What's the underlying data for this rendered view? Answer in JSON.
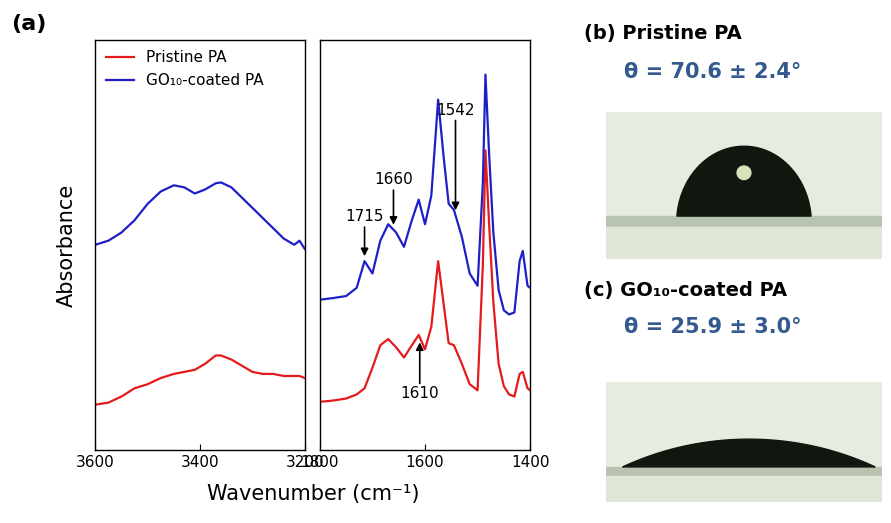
{
  "chart_data": [
    {
      "type": "line",
      "x": [
        3600,
        3575,
        3550,
        3525,
        3500,
        3475,
        3450,
        3430,
        3410,
        3390,
        3370,
        3360,
        3340,
        3320,
        3300,
        3280,
        3260,
        3240,
        3220,
        3210,
        3200
      ],
      "series": [
        {
          "name": "Pristine PA",
          "color": "#e41a1c",
          "values": [
            1.1,
            1.15,
            1.3,
            1.5,
            1.6,
            1.75,
            1.85,
            1.9,
            1.95,
            2.1,
            2.3,
            2.3,
            2.2,
            2.05,
            1.9,
            1.85,
            1.85,
            1.8,
            1.8,
            1.8,
            1.75
          ]
        },
        {
          "name": "GO₁₀-coated PA",
          "color": "#1f1fc8",
          "values": [
            5.0,
            5.1,
            5.3,
            5.6,
            6.0,
            6.3,
            6.45,
            6.4,
            6.25,
            6.35,
            6.5,
            6.52,
            6.4,
            6.15,
            5.9,
            5.65,
            5.4,
            5.15,
            5.0,
            5.1,
            4.9
          ]
        }
      ],
      "xlim": [
        3600,
        3200
      ],
      "xticks": [
        3600,
        3400,
        3200
      ],
      "ylim": [
        0,
        10
      ],
      "yticks": [],
      "tick_labels": "x",
      "legend": "upper left"
    },
    {
      "type": "line",
      "x": [
        1800,
        1775,
        1750,
        1730,
        1715,
        1700,
        1685,
        1670,
        1655,
        1640,
        1625,
        1612,
        1600,
        1588,
        1575,
        1565,
        1555,
        1545,
        1530,
        1515,
        1500,
        1490,
        1485,
        1478,
        1470,
        1460,
        1450,
        1440,
        1430,
        1420,
        1414,
        1405,
        1400
      ],
      "series": [
        {
          "name": "Pristine PA",
          "color": "#e41a1c",
          "values": [
            1.17,
            1.2,
            1.25,
            1.35,
            1.5,
            2.0,
            2.55,
            2.7,
            2.5,
            2.25,
            2.55,
            2.8,
            2.45,
            3.0,
            4.6,
            3.6,
            2.6,
            2.55,
            2.1,
            1.6,
            1.45,
            4.5,
            7.3,
            5.5,
            3.6,
            2.1,
            1.55,
            1.35,
            1.3,
            1.85,
            1.9,
            1.5,
            1.45
          ]
        },
        {
          "name": "GO₁₀-coated PA",
          "color": "#1f1fc8",
          "values": [
            3.66,
            3.7,
            3.75,
            3.95,
            4.6,
            4.3,
            5.1,
            5.5,
            5.3,
            4.95,
            5.6,
            6.1,
            5.5,
            6.2,
            8.54,
            7.2,
            6.0,
            5.85,
            5.2,
            4.3,
            4.0,
            6.5,
            9.15,
            7.2,
            5.3,
            3.9,
            3.4,
            3.3,
            3.35,
            4.6,
            4.85,
            4.0,
            3.95
          ]
        }
      ],
      "xlim": [
        1800,
        1400
      ],
      "xticks": [
        1800,
        1600,
        1400
      ],
      "ylim": [
        0,
        10
      ],
      "yticks": [],
      "tick_labels": "x",
      "annotations": [
        {
          "text": "1715",
          "x": 1715,
          "target": "GO₁₀-coated PA"
        },
        {
          "text": "1660",
          "x": 1660,
          "target": "GO₁₀-coated PA"
        },
        {
          "text": "1542",
          "x": 1542,
          "target": "GO₁₀-coated PA"
        },
        {
          "text": "1610",
          "x": 1610,
          "target": "Pristine PA"
        }
      ]
    }
  ],
  "figure": {
    "panel_label": "(a)",
    "x_label": "Wavenumber (cm⁻¹)",
    "y_label": "Absorbance"
  },
  "images": [
    {
      "label": "(b) Pristine PA",
      "contact_angle": "θ = 70.6 ± 2.4°"
    },
    {
      "label": "(c) GO₁₀-coated PA",
      "contact_angle": "θ = 25.9 ± 3.0°"
    }
  ]
}
